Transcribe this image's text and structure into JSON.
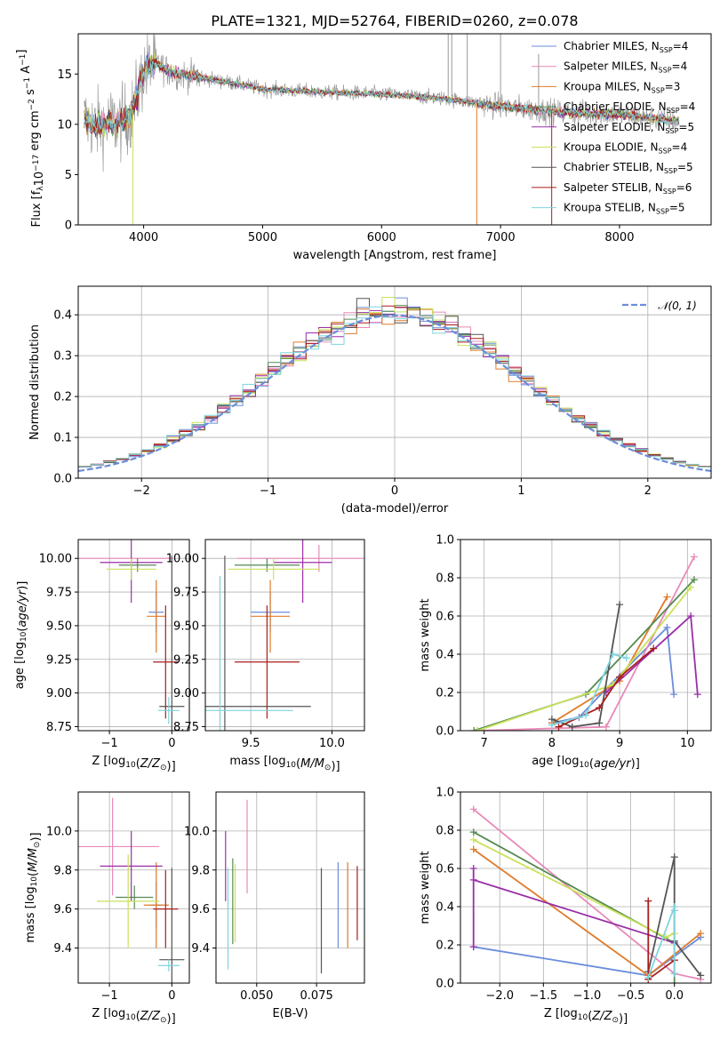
{
  "figure": {
    "title": "PLATE=1321, MJD=52764, FIBERID=0260, z=0.078"
  },
  "palette": {
    "Chabrier MILES": "#6a8ddb",
    "Salpeter MILES": "#e88ab8",
    "Kroupa MILES": "#e07b2a",
    "Chabrier ELODIE": "#558a52",
    "Salpeter ELODIE": "#9a2fa8",
    "Kroupa ELODIE": "#c9e25a",
    "Chabrier STELIB": "#555555",
    "Salpeter STELIB": "#a81d1d",
    "Kroupa STELIB": "#7fd3de",
    "gauss": "#6a8ddb",
    "observed": "#9a9a9a"
  },
  "chart_data": [
    {
      "id": "spectrum",
      "type": "line",
      "xlabel": "wavelength [Angstrom, rest frame]",
      "ylabel": "Flux [f_λ10^{-17} erg cm^{-2} s^{-1} A^{-1}]",
      "xlim": [
        3450,
        8770
      ],
      "ylim": [
        0,
        19
      ],
      "xticks": [
        4000,
        5000,
        6000,
        7000,
        8000
      ],
      "yticks": [
        0,
        5,
        10,
        15
      ],
      "legend_position": "upper-right",
      "legend": [
        {
          "model": "Chabrier MILES",
          "nssp": "4"
        },
        {
          "model": "Salpeter MILES",
          "nssp": "4"
        },
        {
          "model": "Kroupa MILES",
          "nssp": "3"
        },
        {
          "model": "Chabrier ELODIE",
          "nssp": "4"
        },
        {
          "model": "Salpeter ELODIE",
          "nssp": "5"
        },
        {
          "model": "Kroupa ELODIE",
          "nssp": "4"
        },
        {
          "model": "Chabrier STELIB",
          "nssp": "5"
        },
        {
          "model": "Salpeter STELIB",
          "nssp": "6"
        },
        {
          "model": "Kroupa STELIB",
          "nssp": "5"
        }
      ],
      "continuum": {
        "x": [
          3500,
          3600,
          3700,
          3800,
          3900,
          4000,
          4100,
          4200,
          4300,
          4500,
          4800,
          5000,
          5500,
          6000,
          6500,
          7000,
          7500,
          8000,
          8500
        ],
        "y": [
          10.5,
          9.8,
          10.2,
          10.0,
          11.0,
          15.2,
          16.2,
          15.3,
          15.0,
          14.6,
          14.0,
          13.5,
          13.2,
          13.0,
          12.6,
          11.8,
          11.2,
          11.0,
          10.3
        ]
      }
    },
    {
      "id": "residuals",
      "type": "histogram",
      "xlabel": "(data-model)/error",
      "ylabel": "Normed distribution",
      "xlim": [
        -2.5,
        2.5
      ],
      "ylim": [
        0,
        0.47
      ],
      "xticks": [
        -2,
        -1,
        0,
        1,
        2
      ],
      "yticks": [
        0.0,
        0.1,
        0.2,
        0.3,
        0.4
      ],
      "grid": true,
      "reference_label": "𝒩(0, 1)",
      "bin_width": 0.1
    },
    {
      "id": "age_vs_Z",
      "type": "errorbar",
      "xlabel": "Z [log10(Z/Z⊙)]",
      "ylabel": "age  [log10(age/yr)]",
      "xlim": [
        -1.5,
        0.28
      ],
      "ylim": [
        8.72,
        10.14
      ],
      "xticks": [
        -1,
        0
      ],
      "yticks": [
        8.75,
        9.0,
        9.25,
        9.5,
        9.75,
        10.0
      ],
      "grid": true,
      "points": [
        {
          "model": "Chabrier MILES",
          "x": -0.25,
          "y": 9.6,
          "xerr": 0.12,
          "yerr": 0.15
        },
        {
          "model": "Salpeter MILES",
          "x": -0.75,
          "y": 10.0,
          "xerr": 0.75,
          "yerr": 0.0
        },
        {
          "model": "Kroupa MILES",
          "x": -0.25,
          "y": 9.57,
          "xerr": 0.15,
          "yerr": 0.27
        },
        {
          "model": "Chabrier ELODIE",
          "x": -0.55,
          "y": 9.95,
          "xerr": 0.3,
          "yerr": 0.05
        },
        {
          "model": "Salpeter ELODIE",
          "x": -0.65,
          "y": 9.97,
          "xerr": 0.5,
          "yerr": 0.3
        },
        {
          "model": "Kroupa ELODIE",
          "x": -0.65,
          "y": 9.92,
          "xerr": 0.4,
          "yerr": 0.08
        },
        {
          "model": "Chabrier STELIB",
          "x": 0.0,
          "y": 8.9,
          "xerr": 0.2,
          "yerr": 1.12
        },
        {
          "model": "Salpeter STELIB",
          "x": -0.1,
          "y": 9.23,
          "xerr": 0.2,
          "yerr": 0.42
        },
        {
          "model": "Kroupa STELIB",
          "x": -0.05,
          "y": 8.87,
          "xerr": 0.17,
          "yerr": 0.1
        }
      ]
    },
    {
      "id": "age_vs_mass",
      "type": "errorbar",
      "xlabel": "mass [log10(M/M⊙)]",
      "ylabel": "",
      "xlim": [
        9.22,
        10.2
      ],
      "ylim": [
        8.72,
        10.14
      ],
      "xticks": [
        9.5,
        10.0
      ],
      "yticks": [
        8.75,
        9.0,
        9.25,
        9.5,
        9.75,
        10.0
      ],
      "grid": true,
      "points": [
        {
          "model": "Chabrier MILES",
          "x": 9.62,
          "y": 9.6,
          "xerr": 0.12,
          "yerr": 0.15
        },
        {
          "model": "Salpeter MILES",
          "x": 9.92,
          "y": 10.0,
          "xerr": 0.5,
          "yerr": 0.1
        },
        {
          "model": "Kroupa MILES",
          "x": 9.62,
          "y": 9.57,
          "xerr": 0.12,
          "yerr": 0.27
        },
        {
          "model": "Chabrier ELODIE",
          "x": 9.6,
          "y": 9.95,
          "xerr": 0.2,
          "yerr": 0.05
        },
        {
          "model": "Salpeter ELODIE",
          "x": 9.82,
          "y": 9.97,
          "xerr": 0.18,
          "yerr": 0.3
        },
        {
          "model": "Kroupa ELODIE",
          "x": 9.64,
          "y": 9.92,
          "xerr": 0.28,
          "yerr": 0.08
        },
        {
          "model": "Chabrier STELIB",
          "x": 9.34,
          "y": 8.9,
          "xerr": 0.53,
          "yerr": 1.12
        },
        {
          "model": "Salpeter STELIB",
          "x": 9.6,
          "y": 9.23,
          "xerr": 0.2,
          "yerr": 0.42
        },
        {
          "model": "Kroupa STELIB",
          "x": 9.31,
          "y": 8.87,
          "xerr": 0.45,
          "yerr": 1.0
        }
      ]
    },
    {
      "id": "massweight_vs_age",
      "type": "line",
      "xlabel": "age  [log10(age/yr)]",
      "ylabel": "mass weight",
      "xlim": [
        6.65,
        10.35
      ],
      "ylim": [
        0,
        1
      ],
      "xticks": [
        7,
        8,
        9,
        10
      ],
      "yticks": [
        0.0,
        0.2,
        0.4,
        0.6,
        0.8,
        1.0
      ],
      "grid": true,
      "series": [
        {
          "model": "Chabrier MILES",
          "x": [
            8.0,
            8.4,
            8.8,
            9.7,
            9.8
          ],
          "y": [
            0.04,
            0.07,
            0.22,
            0.54,
            0.19
          ]
        },
        {
          "model": "Salpeter MILES",
          "x": [
            6.9,
            8.8,
            10.1
          ],
          "y": [
            0.0,
            0.02,
            0.91
          ]
        },
        {
          "model": "Kroupa MILES",
          "x": [
            8.0,
            9.0,
            9.7
          ],
          "y": [
            0.04,
            0.26,
            0.7
          ]
        },
        {
          "model": "Chabrier ELODIE",
          "x": [
            6.85,
            8.5,
            10.1
          ],
          "y": [
            0.0,
            0.19,
            0.79
          ]
        },
        {
          "model": "Salpeter ELODIE",
          "x": [
            8.8,
            10.05,
            10.15
          ],
          "y": [
            0.2,
            0.6,
            0.19
          ]
        },
        {
          "model": "Kroupa ELODIE",
          "x": [
            6.9,
            8.9,
            10.05
          ],
          "y": [
            0.0,
            0.24,
            0.75
          ]
        },
        {
          "model": "Chabrier STELIB",
          "x": [
            8.0,
            8.3,
            8.7,
            9.0
          ],
          "y": [
            0.06,
            0.02,
            0.04,
            0.66
          ]
        },
        {
          "model": "Salpeter STELIB",
          "x": [
            8.1,
            8.7,
            9.0,
            9.5
          ],
          "y": [
            0.02,
            0.12,
            0.28,
            0.43
          ]
        },
        {
          "model": "Kroupa STELIB",
          "x": [
            8.0,
            8.5,
            8.9,
            9.1
          ],
          "y": [
            0.03,
            0.08,
            0.4,
            0.38
          ]
        }
      ]
    },
    {
      "id": "mass_vs_Z",
      "type": "errorbar",
      "xlabel": "Z [log10(Z/Z⊙)]",
      "ylabel": "mass [log10(M/M⊙)]",
      "xlim": [
        -1.5,
        0.28
      ],
      "ylim": [
        9.22,
        10.2
      ],
      "xticks": [
        -1,
        0
      ],
      "yticks": [
        9.4,
        9.6,
        9.8,
        10.0
      ],
      "grid": true,
      "points": [
        {
          "model": "Chabrier MILES",
          "x": -0.25,
          "y": 9.62,
          "xerr": 0.1,
          "yerr": 0.12
        },
        {
          "model": "Salpeter MILES",
          "x": -0.95,
          "y": 9.92,
          "xerr": 0.75,
          "yerr": 0.25
        },
        {
          "model": "Kroupa MILES",
          "x": -0.25,
          "y": 9.62,
          "xerr": 0.2,
          "yerr": 0.22
        },
        {
          "model": "Chabrier ELODIE",
          "x": -0.6,
          "y": 9.66,
          "xerr": 0.3,
          "yerr": 0.06
        },
        {
          "model": "Salpeter ELODIE",
          "x": -0.65,
          "y": 9.82,
          "xerr": 0.5,
          "yerr": 0.18
        },
        {
          "model": "Kroupa ELODIE",
          "x": -0.7,
          "y": 9.64,
          "xerr": 0.5,
          "yerr": 0.24
        },
        {
          "model": "Chabrier STELIB",
          "x": 0.0,
          "y": 9.34,
          "xerr": 0.2,
          "yerr": 0.47
        },
        {
          "model": "Salpeter STELIB",
          "x": -0.1,
          "y": 9.6,
          "xerr": 0.2,
          "yerr": 0.2
        },
        {
          "model": "Kroupa STELIB",
          "x": -0.05,
          "y": 9.31,
          "xerr": 0.17,
          "yerr": 0.03
        }
      ]
    },
    {
      "id": "mass_vs_ebv",
      "type": "errorbar",
      "xlabel": "E(B-V)",
      "ylabel": "",
      "xlim": [
        0.033,
        0.095
      ],
      "ylim": [
        9.22,
        10.2
      ],
      "xticks": [
        0.05,
        0.075
      ],
      "yticks": [
        9.4,
        9.6,
        9.8,
        10.0
      ],
      "grid": true,
      "points": [
        {
          "model": "Chabrier MILES",
          "x": 0.084,
          "y": 9.62,
          "xerr": 0,
          "yerr": 0.22
        },
        {
          "model": "Salpeter MILES",
          "x": 0.046,
          "y": 9.92,
          "xerr": 0,
          "yerr": 0.24
        },
        {
          "model": "Kroupa MILES",
          "x": 0.088,
          "y": 9.62,
          "xerr": 0,
          "yerr": 0.22
        },
        {
          "model": "Chabrier ELODIE",
          "x": 0.04,
          "y": 9.64,
          "xerr": 0,
          "yerr": 0.22
        },
        {
          "model": "Salpeter ELODIE",
          "x": 0.037,
          "y": 9.82,
          "xerr": 0,
          "yerr": 0.18
        },
        {
          "model": "Kroupa ELODIE",
          "x": 0.041,
          "y": 9.63,
          "xerr": 0,
          "yerr": 0.2
        },
        {
          "model": "Chabrier STELIB",
          "x": 0.077,
          "y": 9.54,
          "xerr": 0,
          "yerr": 0.27
        },
        {
          "model": "Salpeter STELIB",
          "x": 0.092,
          "y": 9.63,
          "xerr": 0,
          "yerr": 0.19
        },
        {
          "model": "Kroupa STELIB",
          "x": 0.038,
          "y": 9.55,
          "xerr": 0,
          "yerr": 0.26
        }
      ]
    },
    {
      "id": "massweight_vs_Z",
      "type": "line",
      "xlabel": "Z [log10(Z/Z⊙)]",
      "ylabel": "mass weight",
      "xlim": [
        -2.45,
        0.42
      ],
      "ylim": [
        0,
        1
      ],
      "xticks": [
        -2.0,
        -1.5,
        -1.0,
        -0.5,
        0.0
      ],
      "yticks": [
        0.0,
        0.2,
        0.4,
        0.6,
        0.8,
        1.0
      ],
      "grid": true,
      "series": [
        {
          "model": "Chabrier MILES",
          "x": [
            -2.3,
            -0.3,
            0.3
          ],
          "y": [
            0.19,
            0.04,
            0.24
          ]
        },
        {
          "model": "Salpeter MILES",
          "x": [
            -2.3,
            0.0,
            0.3
          ],
          "y": [
            0.91,
            0.05,
            0.02
          ]
        },
        {
          "model": "Kroupa MILES",
          "x": [
            -2.3,
            -0.3,
            0.3
          ],
          "y": [
            0.7,
            0.04,
            0.26
          ]
        },
        {
          "model": "Chabrier ELODIE",
          "x": [
            -2.3,
            0.0,
            0.0
          ],
          "y": [
            0.79,
            0.21,
            0.0
          ]
        },
        {
          "model": "Salpeter ELODIE",
          "x": [
            -2.3,
            -2.3,
            -2.3,
            0.0
          ],
          "y": [
            0.6,
            0.19,
            0.54,
            0.21
          ]
        },
        {
          "model": "Kroupa ELODIE",
          "x": [
            -2.3,
            -0.1,
            0.0
          ],
          "y": [
            0.75,
            0.24,
            0.26
          ]
        },
        {
          "model": "Chabrier STELIB",
          "x": [
            -0.3,
            0.0,
            0.0,
            0.3
          ],
          "y": [
            0.06,
            0.66,
            0.22,
            0.04
          ]
        },
        {
          "model": "Salpeter STELIB",
          "x": [
            -0.3,
            -0.3,
            0.0
          ],
          "y": [
            0.43,
            0.02,
            0.12
          ]
        },
        {
          "model": "Kroupa STELIB",
          "x": [
            -0.3,
            0.0,
            0.0,
            0.0
          ],
          "y": [
            0.03,
            0.4,
            0.38,
            0.05
          ]
        }
      ]
    }
  ]
}
